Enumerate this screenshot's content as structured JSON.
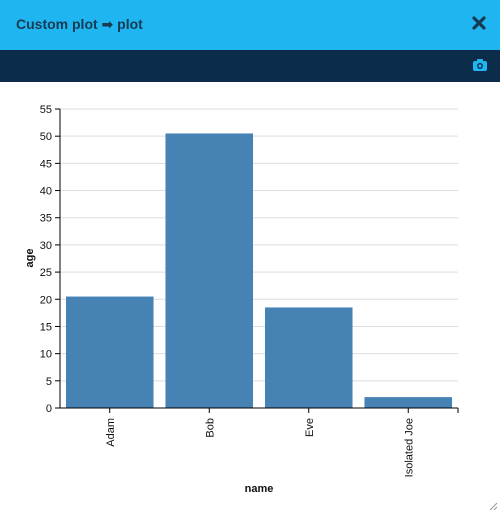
{
  "window": {
    "title": "Custom plot ➡ plot",
    "close_icon": "close-icon",
    "camera_icon": "camera-icon"
  },
  "chart_data": {
    "type": "bar",
    "categories": [
      "Adam",
      "Bob",
      "Eve",
      "Isolated Joe"
    ],
    "values": [
      20.5,
      50.5,
      18.5,
      2
    ],
    "xlabel": "name",
    "ylabel": "age",
    "ylim": [
      0,
      55
    ],
    "yticks": [
      0,
      5,
      10,
      15,
      20,
      25,
      30,
      35,
      40,
      45,
      50,
      55
    ],
    "grid": true,
    "bar_color": "#4682b4"
  },
  "colors": {
    "titlebar": "#1fb5f0",
    "toolbar": "#0b2d4a",
    "bar": "#4682b4",
    "grid": "#dddddd"
  }
}
